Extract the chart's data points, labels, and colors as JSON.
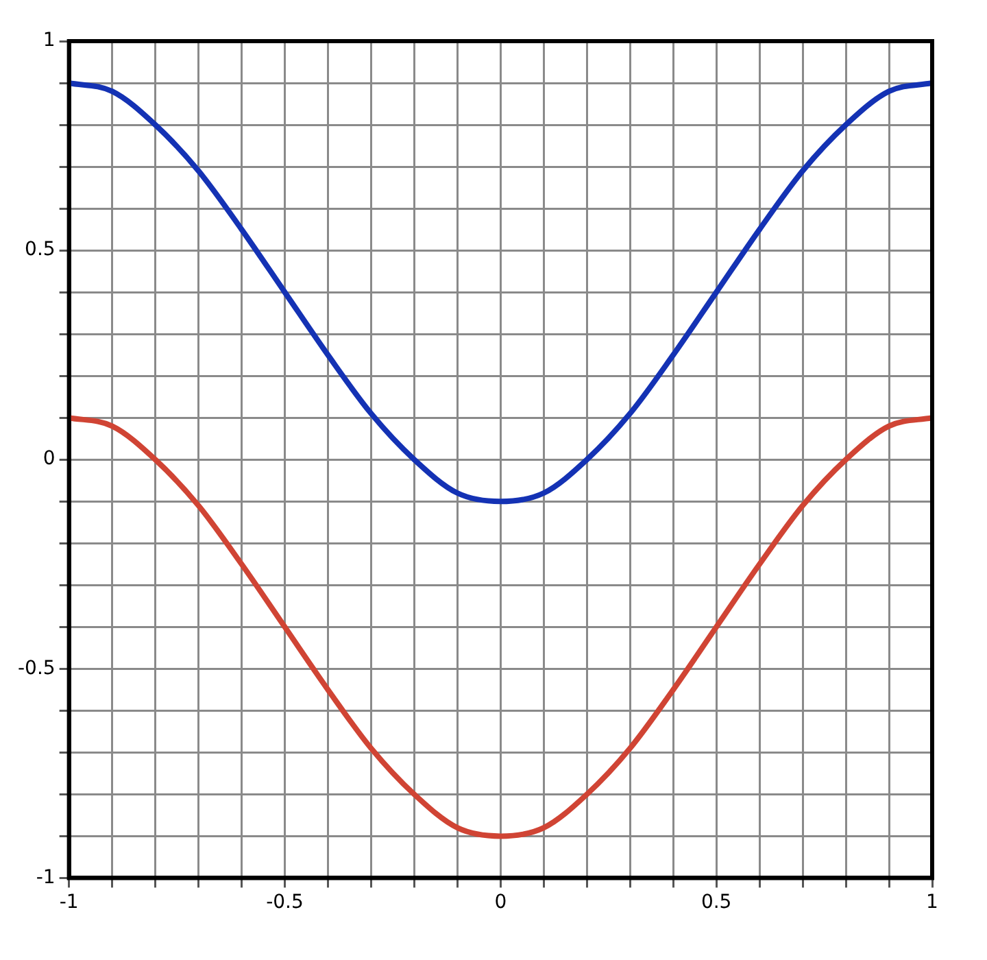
{
  "chart_data": {
    "type": "line",
    "x": [
      -1,
      -0.9,
      -0.8,
      -0.7,
      -0.6,
      -0.5,
      -0.4,
      -0.3,
      -0.2,
      -0.1,
      0,
      0.1,
      0.2,
      0.3,
      0.4,
      0.5,
      0.6,
      0.7,
      0.8,
      0.9,
      1
    ],
    "series": [
      {
        "color": "#1432b4",
        "values": [
          0.9,
          0.88,
          0.8,
          0.69,
          0.55,
          0.4,
          0.25,
          0.11,
          0.0,
          -0.08,
          -0.1,
          -0.08,
          0.0,
          0.11,
          0.25,
          0.4,
          0.55,
          0.69,
          0.8,
          0.88,
          0.9
        ]
      },
      {
        "color": "#d04434",
        "values": [
          0.1,
          0.08,
          0.0,
          -0.11,
          -0.25,
          -0.4,
          -0.55,
          -0.69,
          -0.8,
          -0.88,
          -0.9,
          -0.88,
          -0.8,
          -0.69,
          -0.55,
          -0.4,
          -0.25,
          -0.11,
          0.0,
          0.08,
          0.1
        ]
      }
    ],
    "xlim": [
      -1,
      1
    ],
    "ylim": [
      -1,
      1
    ],
    "xticks": [
      -1,
      {
        "value": -0.9,
        "label": null
      },
      {
        "value": -0.8,
        "label": null
      },
      {
        "value": -0.7,
        "label": null
      },
      {
        "value": -0.6,
        "label": null
      },
      -0.5,
      {
        "value": -0.4,
        "label": null
      },
      {
        "value": -0.3,
        "label": null
      },
      {
        "value": -0.2,
        "label": null
      },
      {
        "value": -0.1,
        "label": null
      },
      0,
      {
        "value": 0.1,
        "label": null
      },
      {
        "value": 0.2,
        "label": null
      },
      {
        "value": 0.3,
        "label": null
      },
      {
        "value": 0.4,
        "label": null
      },
      0.5,
      {
        "value": 0.6,
        "label": null
      },
      {
        "value": 0.7,
        "label": null
      },
      {
        "value": 0.8,
        "label": null
      },
      {
        "value": 0.9,
        "label": null
      },
      1
    ],
    "yticks": [
      -1,
      {
        "value": -0.9,
        "label": null
      },
      {
        "value": -0.8,
        "label": null
      },
      {
        "value": -0.7,
        "label": null
      },
      {
        "value": -0.6,
        "label": null
      },
      -0.5,
      {
        "value": -0.4,
        "label": null
      },
      {
        "value": -0.3,
        "label": null
      },
      {
        "value": -0.2,
        "label": null
      },
      {
        "value": -0.1,
        "label": null
      },
      0,
      {
        "value": 0.1,
        "label": null
      },
      {
        "value": 0.2,
        "label": null
      },
      {
        "value": 0.3,
        "label": null
      },
      {
        "value": 0.4,
        "label": null
      },
      0.5,
      {
        "value": 0.6,
        "label": null
      },
      {
        "value": 0.7,
        "label": null
      },
      {
        "value": 0.8,
        "label": null
      },
      {
        "value": 0.9,
        "label": null
      },
      1
    ],
    "grid": true,
    "legend": false,
    "marker": "none",
    "line_style": "solid"
  }
}
